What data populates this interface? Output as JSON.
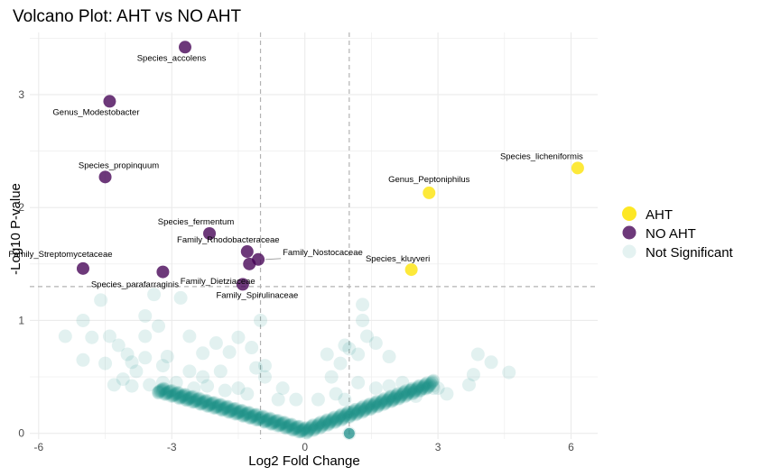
{
  "chart_data": {
    "type": "scatter",
    "title": "Volcano Plot: AHT vs NO AHT",
    "xlabel": "Log2 Fold Change",
    "ylabel": "-Log10 P-value",
    "xlim": [
      -6.2,
      6.6
    ],
    "ylim": [
      -0.05,
      3.55
    ],
    "xticks": [
      -6,
      -3,
      0,
      3,
      6
    ],
    "yticks": [
      0,
      1,
      2,
      3
    ],
    "grid": true,
    "fc_threshold": [
      -1,
      1
    ],
    "p_threshold": 1.3,
    "legend_position": "right",
    "series": [
      {
        "name": "AHT",
        "color": "#FDE725",
        "points": [
          {
            "x": 6.15,
            "y": 2.35,
            "label": "Species_licheniformis"
          },
          {
            "x": 2.8,
            "y": 2.13,
            "label": "Genus_Peptoniphilus"
          },
          {
            "x": 2.4,
            "y": 1.45,
            "label": "Species_kluyveri"
          }
        ]
      },
      {
        "name": "NO AHT",
        "color": "#440154",
        "points": [
          {
            "x": -2.7,
            "y": 3.42,
            "label": "Species_accolens"
          },
          {
            "x": -4.4,
            "y": 2.94,
            "label": "Genus_Modestobacter"
          },
          {
            "x": -4.5,
            "y": 2.27,
            "label": "Species_propinquum"
          },
          {
            "x": -2.15,
            "y": 1.77,
            "label": "Species_fermentum"
          },
          {
            "x": -1.3,
            "y": 1.61,
            "label": "Family_Rhodobacteraceae"
          },
          {
            "x": -1.05,
            "y": 1.54,
            "label": "Family_Nostocaceae"
          },
          {
            "x": -1.25,
            "y": 1.5,
            "label": "Family_Dietziaceae"
          },
          {
            "x": -1.4,
            "y": 1.32,
            "label": "Family_Spirulinaceae"
          },
          {
            "x": -5.0,
            "y": 1.46,
            "label": "Family_Streptomycetaceae"
          },
          {
            "x": -3.2,
            "y": 1.43,
            "label": "Species_parafarraginis"
          }
        ]
      },
      {
        "name": "Not Significant",
        "color": "#21908C",
        "points": [
          {
            "x": -5.4,
            "y": 0.86
          },
          {
            "x": -5.0,
            "y": 1.0
          },
          {
            "x": -4.8,
            "y": 0.85
          },
          {
            "x": -4.6,
            "y": 1.18
          },
          {
            "x": -5.0,
            "y": 0.65
          },
          {
            "x": -4.5,
            "y": 0.62
          },
          {
            "x": -4.4,
            "y": 0.86
          },
          {
            "x": -4.2,
            "y": 0.78
          },
          {
            "x": -4.0,
            "y": 0.7
          },
          {
            "x": -3.9,
            "y": 0.63
          },
          {
            "x": -3.6,
            "y": 0.67
          },
          {
            "x": -3.6,
            "y": 0.86
          },
          {
            "x": -3.6,
            "y": 1.04
          },
          {
            "x": -3.4,
            "y": 1.23
          },
          {
            "x": -2.8,
            "y": 1.2
          },
          {
            "x": -3.3,
            "y": 0.95
          },
          {
            "x": -3.1,
            "y": 0.68
          },
          {
            "x": -2.6,
            "y": 0.86
          },
          {
            "x": -3.8,
            "y": 0.55
          },
          {
            "x": -3.2,
            "y": 0.6
          },
          {
            "x": -2.3,
            "y": 0.71
          },
          {
            "x": -2.0,
            "y": 0.8
          },
          {
            "x": -1.7,
            "y": 0.72
          },
          {
            "x": -1.5,
            "y": 0.85
          },
          {
            "x": -2.6,
            "y": 0.55
          },
          {
            "x": -2.3,
            "y": 0.5
          },
          {
            "x": -1.9,
            "y": 0.55
          },
          {
            "x": -1.2,
            "y": 0.76
          },
          {
            "x": -1.0,
            "y": 1.0
          },
          {
            "x": -0.9,
            "y": 0.6
          },
          {
            "x": -1.1,
            "y": 0.58
          },
          {
            "x": -0.9,
            "y": 0.5
          },
          {
            "x": -0.5,
            "y": 0.4
          },
          {
            "x": -0.2,
            "y": 0.3
          },
          {
            "x": -0.6,
            "y": 0.3
          },
          {
            "x": -4.3,
            "y": 0.43
          },
          {
            "x": -3.9,
            "y": 0.42
          },
          {
            "x": -3.5,
            "y": 0.43
          },
          {
            "x": -3.2,
            "y": 0.45
          },
          {
            "x": -2.9,
            "y": 0.45
          },
          {
            "x": -2.5,
            "y": 0.4
          },
          {
            "x": -2.2,
            "y": 0.42
          },
          {
            "x": -1.8,
            "y": 0.38
          },
          {
            "x": -1.5,
            "y": 0.4
          },
          {
            "x": -1.3,
            "y": 0.35
          },
          {
            "x": -2.7,
            "y": 0.32
          },
          {
            "x": -3.3,
            "y": 0.36
          },
          {
            "x": -4.1,
            "y": 0.48
          },
          {
            "x": 0.5,
            "y": 0.7
          },
          {
            "x": 0.8,
            "y": 0.62
          },
          {
            "x": 1.2,
            "y": 0.7
          },
          {
            "x": 1.4,
            "y": 0.86
          },
          {
            "x": 1.3,
            "y": 1.14
          },
          {
            "x": 1.3,
            "y": 1.0
          },
          {
            "x": 1.6,
            "y": 0.8
          },
          {
            "x": 1.9,
            "y": 0.68
          },
          {
            "x": 0.9,
            "y": 0.78
          },
          {
            "x": 1.0,
            "y": 0.75
          },
          {
            "x": 0.6,
            "y": 0.5
          },
          {
            "x": 1.2,
            "y": 0.45
          },
          {
            "x": 1.6,
            "y": 0.4
          },
          {
            "x": 1.9,
            "y": 0.42
          },
          {
            "x": 2.2,
            "y": 0.45
          },
          {
            "x": 2.7,
            "y": 0.4
          },
          {
            "x": 3.2,
            "y": 0.35
          },
          {
            "x": 3.7,
            "y": 0.43
          },
          {
            "x": 3.8,
            "y": 0.52
          },
          {
            "x": 3.9,
            "y": 0.7
          },
          {
            "x": 4.2,
            "y": 0.63
          },
          {
            "x": 4.6,
            "y": 0.54
          },
          {
            "x": 3.0,
            "y": 0.4
          },
          {
            "x": 2.4,
            "y": 0.38
          },
          {
            "x": 2.0,
            "y": 0.3
          },
          {
            "x": 0.3,
            "y": 0.3
          },
          {
            "x": 0.7,
            "y": 0.35
          },
          {
            "x": 0.9,
            "y": 0.3
          },
          {
            "x": 2.5,
            "y": 0.33
          },
          {
            "x": 2.9,
            "y": 0.4
          },
          {
            "x": 1.0,
            "y": 0.0
          }
        ]
      }
    ],
    "legend": {
      "entries": [
        "AHT",
        "NO AHT",
        "Not Significant"
      ]
    }
  }
}
